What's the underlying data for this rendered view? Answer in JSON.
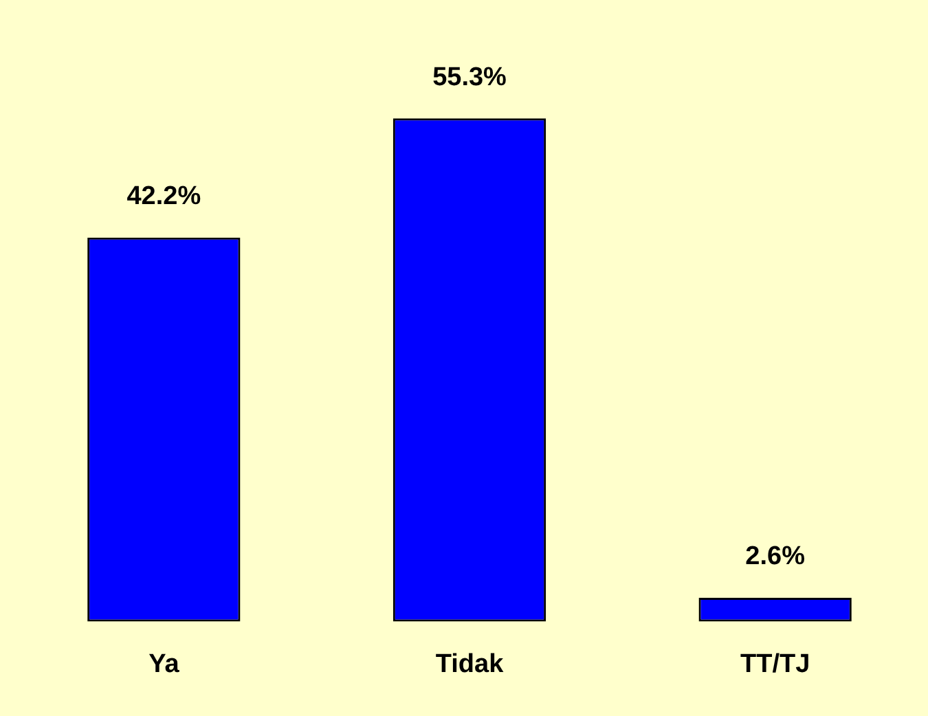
{
  "chart_data": {
    "type": "bar",
    "categories": [
      "Ya",
      "Tidak",
      "TT/TJ"
    ],
    "values": [
      42.2,
      55.3,
      2.6
    ],
    "color": "#0000ff",
    "value_labels": [
      "42.2%",
      "55.3%",
      "2.6%"
    ],
    "grid": false,
    "legend": false
  }
}
